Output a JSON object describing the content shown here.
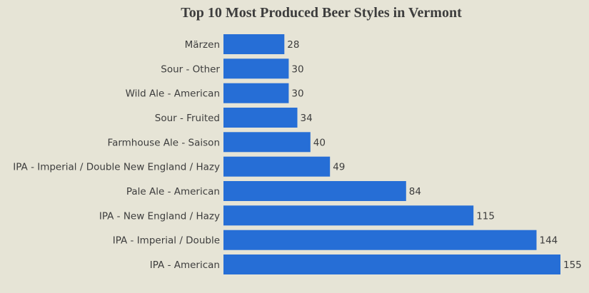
{
  "chart_data": {
    "type": "bar",
    "orientation": "horizontal",
    "title": "Top 10 Most Produced Beer Styles in Vermont",
    "xlabel": "",
    "ylabel": "",
    "categories": [
      "Märzen",
      "Sour - Other",
      "Wild Ale - American",
      "Sour - Fruited",
      "Farmhouse Ale - Saison",
      "IPA - Imperial / Double New England / Hazy",
      "Pale Ale - American",
      "IPA - New England / Hazy",
      "IPA - Imperial / Double",
      "IPA - American"
    ],
    "values": [
      28,
      30,
      30,
      34,
      40,
      49,
      84,
      115,
      144,
      155
    ],
    "xlim": [
      0,
      155
    ],
    "grid": false,
    "legend": "none",
    "bar_color": "#266ed6",
    "background_color": "#e6e4d6",
    "text_color": "#3d3d3d"
  }
}
